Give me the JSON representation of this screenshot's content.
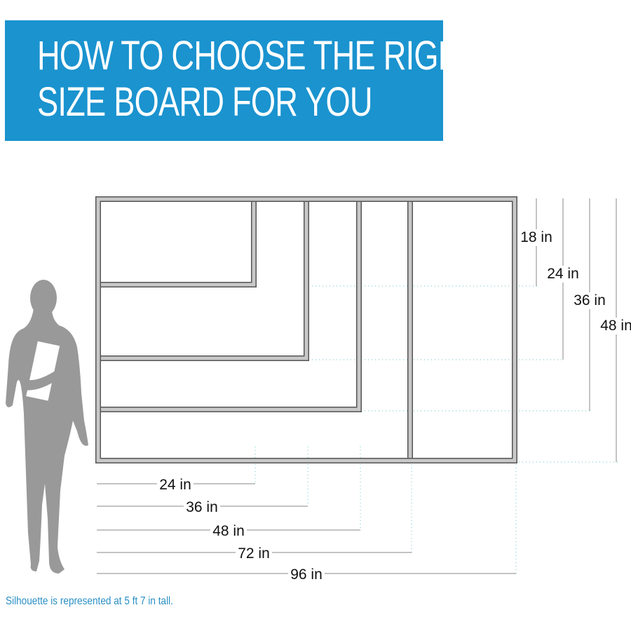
{
  "header": {
    "title_line1": "HOW TO CHOOSE THE RIGHT",
    "title_line2": "SIZE BOARD FOR YOU",
    "background_color": "#1a93cf"
  },
  "boards": [
    {
      "width_in": 24,
      "height_in": 18
    },
    {
      "width_in": 36,
      "height_in": 24
    },
    {
      "width_in": 48,
      "height_in": 36
    },
    {
      "width_in": 72,
      "height_in": 48
    },
    {
      "width_in": 96,
      "height_in": 48
    }
  ],
  "height_labels": [
    "18 in",
    "24 in",
    "36 in",
    "48 in"
  ],
  "width_labels": [
    "24 in",
    "36 in",
    "48 in",
    "72 in",
    "96 in"
  ],
  "silhouette": {
    "icon": "woman-silhouette-icon",
    "color": "#999999"
  },
  "caption": "Silhouette is represented at 5 ft 7 in tall.",
  "colors": {
    "frame": "#c8c8c8",
    "guide": "#7ecfd0",
    "dimension_line": "#888888"
  }
}
